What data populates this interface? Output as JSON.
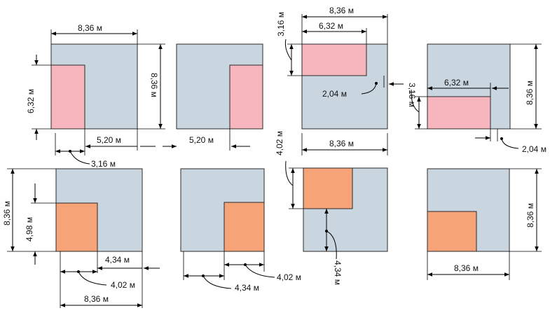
{
  "labels": {
    "w836": "8,36 м",
    "w632": "6,32 м",
    "w520": "5,20 м",
    "w316": "3,16 м",
    "w204": "2,04 м",
    "w498": "4,98 м",
    "w434": "4,34 м",
    "w402": "4,02 м"
  },
  "colors": {
    "square": "#c9d6df",
    "strip": "#f7b6bd",
    "block": "#f6a377"
  }
}
